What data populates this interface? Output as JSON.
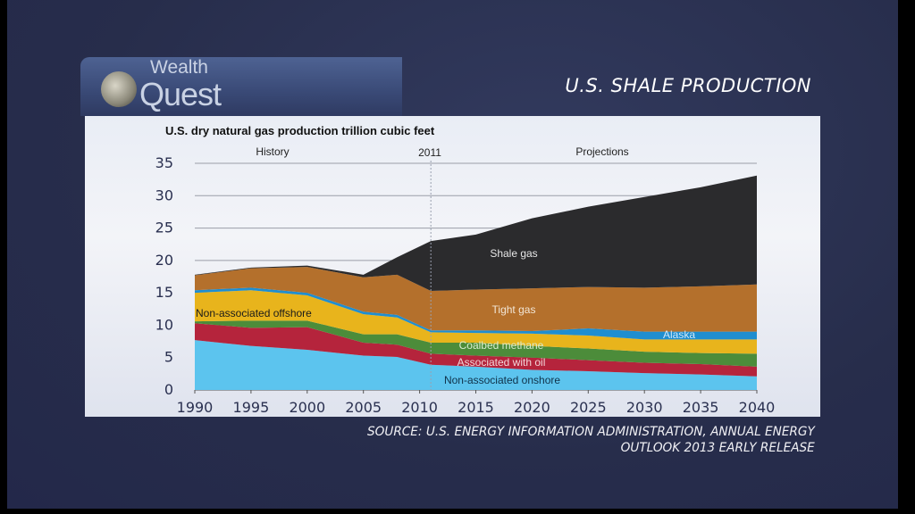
{
  "header": {
    "logo_top": "Wealth",
    "logo_bottom": "Quest",
    "title": "U.S. SHALE PRODUCTION"
  },
  "source": {
    "line1": "SOURCE: U.S. ENERGY INFORMATION ADMINISTRATION, ANNUAL ENERGY",
    "line2": "OUTLOOK 2013 EARLY RELEASE"
  },
  "chart_data": {
    "type": "area",
    "stacked": true,
    "title": "U.S. dry natural gas production trillion cubic feet",
    "annotations": {
      "history": "History",
      "divider": "2011",
      "projections": "Projections"
    },
    "xlim": [
      1990,
      2040
    ],
    "ylim": [
      0,
      35
    ],
    "x_ticks": [
      "1990",
      "1995",
      "2000",
      "2005",
      "2010",
      "2015",
      "2020",
      "2025",
      "2030",
      "2035",
      "2040"
    ],
    "y_ticks": [
      "0",
      "5",
      "10",
      "15",
      "20",
      "25",
      "30",
      "35"
    ],
    "x": [
      1990,
      1995,
      2000,
      2005,
      2008,
      2011,
      2015,
      2020,
      2025,
      2030,
      2035,
      2040
    ],
    "series": [
      {
        "name": "Non-associated onshore",
        "color": "#5cc4ee",
        "values": [
          7.7,
          6.8,
          6.2,
          5.3,
          5.1,
          3.9,
          3.6,
          3.1,
          2.9,
          2.6,
          2.4,
          2.1
        ]
      },
      {
        "name": "Associated with oil",
        "color": "#b5243c",
        "values": [
          2.6,
          2.8,
          3.5,
          2.0,
          1.9,
          1.7,
          1.7,
          1.9,
          1.7,
          1.6,
          1.6,
          1.5
        ]
      },
      {
        "name": "Coalbed methane",
        "color": "#4c8c3a",
        "values": [
          0.3,
          1.1,
          1.0,
          1.3,
          1.6,
          1.7,
          2.0,
          1.8,
          1.8,
          1.7,
          1.7,
          2.0
        ]
      },
      {
        "name": "Non-associated offshore",
        "color": "#e8b41c",
        "values": [
          4.4,
          4.7,
          3.9,
          3.1,
          2.6,
          1.6,
          1.5,
          1.9,
          2.0,
          1.9,
          2.1,
          2.2
        ]
      },
      {
        "name": "Alaska",
        "color": "#1f8ed0",
        "values": [
          0.4,
          0.4,
          0.4,
          0.4,
          0.4,
          0.3,
          0.4,
          0.4,
          1.1,
          1.2,
          1.2,
          1.2
        ]
      },
      {
        "name": "Tight gas",
        "color": "#b4702c",
        "values": [
          2.3,
          3.0,
          4.0,
          5.3,
          6.2,
          6.1,
          6.3,
          6.6,
          6.4,
          6.8,
          7.0,
          7.3
        ]
      },
      {
        "name": "Shale gas",
        "color": "#2b2b2d",
        "values": [
          0.1,
          0.1,
          0.2,
          0.4,
          2.7,
          7.7,
          8.5,
          10.8,
          12.4,
          14.0,
          15.3,
          16.8
        ]
      }
    ],
    "grid": true,
    "legend": "inline labels"
  }
}
